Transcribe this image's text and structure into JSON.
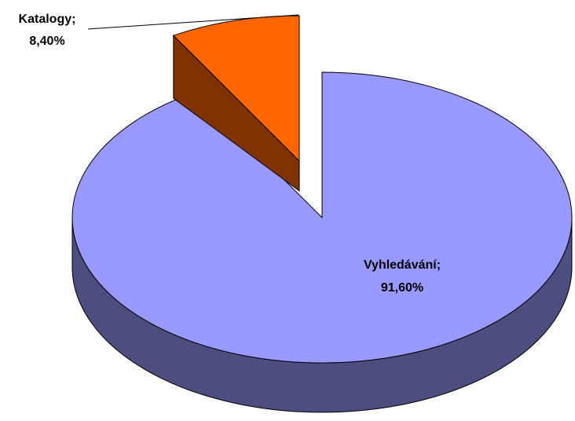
{
  "chart_data": {
    "type": "pie3d",
    "categories": [
      "Katalogy;",
      "Vyhledávání;"
    ],
    "values": [
      8.4,
      91.6
    ],
    "value_labels": [
      "8,40%",
      "91,60%"
    ],
    "series_colors": [
      "#ff6600",
      "#9999ff"
    ],
    "side_colors": [
      "#803300",
      "#4d4d80"
    ]
  }
}
